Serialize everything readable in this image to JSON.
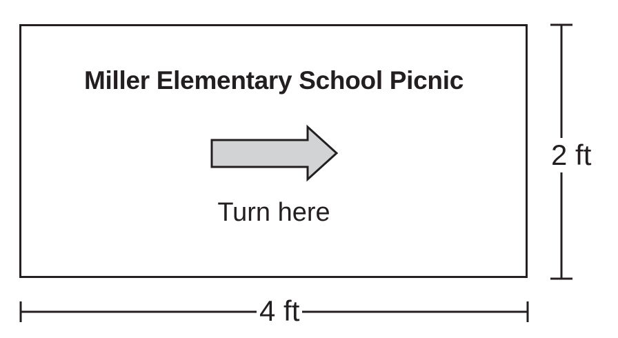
{
  "sign": {
    "title": "Miller Elementary School Picnic",
    "caption": "Turn here",
    "arrow_icon": "right-arrow-icon",
    "arrow_fill": "#d1d3d4",
    "stroke_color": "#231f20"
  },
  "dimensions": {
    "width_label": "4 ft",
    "height_label": "2 ft"
  }
}
